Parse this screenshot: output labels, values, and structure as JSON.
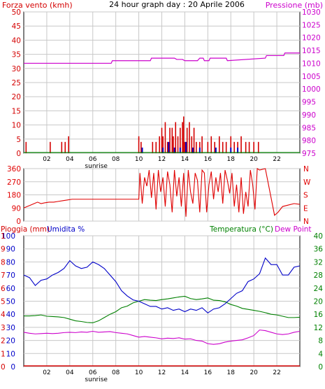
{
  "header": {
    "title": "24 hour graph day : 20 Aprile 2006",
    "left_label": "Forza vento (kmh)",
    "right_label": "Pressione (mb)"
  },
  "colors": {
    "wind": "#d40000",
    "gust": "#0000c8",
    "pressure": "#cc00cc",
    "direction": "#e00000",
    "humidity": "#0000c8",
    "temperature": "#008000",
    "dewpoint": "#cc00cc",
    "rain": "#d40000",
    "axis": "#000000",
    "grid": "#c8c8c8"
  },
  "chart_data": [
    {
      "type": "bar",
      "title": "24 hour graph day : 20 Aprile 2006",
      "ylabel": "Forza vento (kmh)",
      "y2label": "Pressione (mb)",
      "xlim": [
        0,
        24
      ],
      "ylim": [
        0,
        50
      ],
      "y2lim": [
        975,
        1030
      ],
      "x_ticks": [
        "02",
        "04",
        "06",
        "08",
        "10",
        "12",
        "14",
        "16",
        "18",
        "20",
        "22"
      ],
      "sunrise_label": "sunrise",
      "sunrise_hour": 6.3,
      "y_ticks": [
        0,
        5,
        10,
        15,
        20,
        25,
        30,
        35,
        40,
        45,
        50
      ],
      "y2_ticks": [
        975,
        980,
        985,
        990,
        995,
        1000,
        1005,
        1010,
        1015,
        1020,
        1025,
        1030
      ],
      "grid": true,
      "series": [
        {
          "name": "Forza vento",
          "kind": "bars",
          "x": [
            0.2,
            2.3,
            3.3,
            3.6,
            3.9,
            10.0,
            10.2,
            11.2,
            11.5,
            11.8,
            12.0,
            12.1,
            12.3,
            12.5,
            12.7,
            12.9,
            13.0,
            13.2,
            13.4,
            13.6,
            13.8,
            13.9,
            14.0,
            14.2,
            14.4,
            14.6,
            14.8,
            15.0,
            15.3,
            15.5,
            16.0,
            16.3,
            16.6,
            17.0,
            17.3,
            17.6,
            18.0,
            18.3,
            18.6,
            18.9,
            19.3,
            19.6,
            20.0,
            20.4
          ],
          "values": [
            4,
            4,
            4,
            4,
            6,
            6,
            4,
            4,
            4,
            6,
            9,
            6,
            11,
            4,
            9,
            9,
            6,
            11,
            6,
            9,
            11,
            13,
            4,
            9,
            11,
            6,
            9,
            4,
            4,
            6,
            4,
            6,
            4,
            6,
            4,
            4,
            6,
            4,
            4,
            6,
            4,
            4,
            4,
            4
          ]
        },
        {
          "name": "Raffica",
          "kind": "bars",
          "x": [
            10.3,
            12.1,
            12.6,
            13.1,
            13.6,
            14.1,
            14.7,
            15.3,
            16.7,
            18.0,
            18.6
          ],
          "values": [
            2,
            2,
            4,
            2,
            2,
            4,
            2,
            2,
            2,
            2,
            2
          ]
        },
        {
          "name": "Pressione",
          "kind": "line",
          "axis": "y2",
          "x": [
            0,
            7.6,
            7.7,
            11.0,
            11.1,
            13.1,
            13.3,
            13.8,
            14.0,
            15.1,
            15.3,
            15.6,
            15.7,
            16.1,
            16.2,
            17.6,
            17.7,
            21.0,
            21.1,
            22.6,
            22.7,
            24
          ],
          "values": [
            1010,
            1010,
            1011,
            1011,
            1012,
            1012,
            1011.5,
            1011.5,
            1011,
            1011,
            1012,
            1012,
            1011,
            1011,
            1012,
            1012,
            1011,
            1012,
            1013,
            1013,
            1014,
            1014
          ]
        }
      ]
    },
    {
      "type": "line",
      "ylabel_right": [
        "N",
        "W",
        "S",
        "E",
        "N"
      ],
      "xlim": [
        0,
        24
      ],
      "ylim": [
        0,
        360
      ],
      "y_ticks": [
        0,
        90,
        180,
        270,
        360
      ],
      "grid": true,
      "series": [
        {
          "name": "Direzione vento",
          "x": [
            0,
            0.3,
            0.6,
            0.9,
            1.2,
            1.5,
            1.8,
            2.2,
            2.6,
            3.0,
            3.4,
            3.8,
            4.2,
            10.0,
            10.1,
            10.3,
            10.5,
            10.7,
            10.9,
            11.1,
            11.3,
            11.5,
            11.7,
            11.9,
            12.1,
            12.3,
            12.5,
            12.7,
            12.9,
            13.1,
            13.3,
            13.5,
            13.7,
            13.9,
            14.1,
            14.3,
            14.5,
            14.7,
            14.9,
            15.1,
            15.3,
            15.5,
            15.7,
            15.9,
            16.1,
            16.3,
            16.5,
            16.7,
            16.9,
            17.1,
            17.3,
            17.5,
            17.7,
            17.9,
            18.1,
            18.3,
            18.5,
            18.7,
            18.9,
            19.1,
            19.3,
            19.5,
            19.7,
            19.9,
            20.1,
            20.3,
            20.5,
            21.0,
            21.8,
            22.1,
            22.5,
            23.0,
            23.5,
            24
          ],
          "values": [
            90,
            100,
            110,
            120,
            130,
            120,
            125,
            130,
            130,
            135,
            140,
            145,
            150,
            150,
            330,
            120,
            300,
            240,
            350,
            160,
            330,
            80,
            350,
            200,
            300,
            100,
            340,
            250,
            60,
            350,
            170,
            300,
            100,
            330,
            30,
            350,
            200,
            120,
            330,
            280,
            60,
            350,
            330,
            60,
            250,
            340,
            150,
            300,
            200,
            330,
            120,
            350,
            280,
            190,
            330,
            100,
            250,
            60,
            300,
            50,
            200,
            100,
            350,
            250,
            80,
            360,
            350,
            360,
            40,
            60,
            100,
            110,
            120,
            115
          ]
        }
      ]
    },
    {
      "type": "line",
      "title_left": "Pioggia (mm)",
      "title_left2": "Umidita %",
      "title_right": "Temperatura (°C)",
      "title_right2": "Dew Point",
      "xlim": [
        0,
        24
      ],
      "ylim": [
        0,
        100
      ],
      "y2lim": [
        0,
        40
      ],
      "y_ticks": [
        0,
        10,
        20,
        30,
        40,
        50,
        60,
        70,
        80,
        90,
        100
      ],
      "y_ticks_rain": [
        0,
        6,
        12,
        18,
        24,
        30,
        36,
        42,
        48,
        54,
        60,
        66,
        72,
        78,
        84,
        90,
        96,
        102
      ],
      "y_ticks_rain_display": [
        0,
        6,
        12,
        18,
        24,
        30,
        36,
        42,
        48,
        54,
        60,
        66,
        72,
        78,
        84,
        90,
        96,
        102
      ],
      "y2_ticks": [
        0,
        4,
        8,
        12,
        16,
        20,
        24,
        28,
        32,
        36,
        40
      ],
      "grid": true,
      "series": [
        {
          "name": "Umidita %",
          "axis": "y",
          "x": [
            0,
            0.5,
            1.0,
            1.5,
            2.0,
            2.5,
            3.0,
            3.5,
            4.0,
            4.5,
            5.0,
            5.5,
            6.0,
            6.5,
            7.0,
            7.5,
            8.0,
            8.5,
            9.0,
            9.5,
            10.0,
            10.5,
            11.0,
            11.5,
            12.0,
            12.5,
            13.0,
            13.5,
            14.0,
            14.5,
            15.0,
            15.5,
            16.0,
            16.5,
            17.0,
            17.5,
            18.0,
            18.5,
            19.0,
            19.5,
            20.0,
            20.5,
            21.0,
            21.5,
            22.0,
            22.5,
            23.0,
            23.5,
            24
          ],
          "values": [
            70,
            68,
            62,
            66,
            67,
            70,
            72,
            75,
            81,
            77,
            75,
            76,
            80,
            78,
            75,
            70,
            65,
            58,
            54,
            51,
            50,
            48,
            46,
            46,
            44,
            45,
            43,
            44,
            42,
            44,
            43,
            45,
            41,
            44,
            45,
            48,
            52,
            56,
            58,
            65,
            67,
            71,
            83,
            78,
            78,
            70,
            70,
            76,
            77
          ]
        },
        {
          "name": "Temperatura (°C)",
          "axis": "y2",
          "x": [
            0,
            0.5,
            1.0,
            1.5,
            2.0,
            2.5,
            3.0,
            3.5,
            4.0,
            4.5,
            5.0,
            5.5,
            6.0,
            6.5,
            7.0,
            7.5,
            8.0,
            8.5,
            9.0,
            9.5,
            10.0,
            10.5,
            11.0,
            11.5,
            12.0,
            12.5,
            13.0,
            13.5,
            14.0,
            14.5,
            15.0,
            15.5,
            16.0,
            16.5,
            17.0,
            17.5,
            18.0,
            18.5,
            19.0,
            19.5,
            20.0,
            20.5,
            21.0,
            21.5,
            22.0,
            22.5,
            23.0,
            23.5,
            24
          ],
          "values": [
            15.5,
            15.5,
            15.6,
            15.8,
            15.4,
            15.3,
            15.2,
            15.0,
            14.5,
            14.0,
            13.8,
            13.5,
            13.4,
            14.0,
            15.0,
            16.0,
            16.8,
            18.0,
            18.5,
            19.5,
            20.0,
            20.5,
            20.3,
            20.2,
            20.5,
            20.7,
            21.0,
            21.3,
            21.5,
            20.8,
            20.5,
            20.7,
            21.0,
            20.3,
            20.2,
            19.8,
            19.0,
            18.5,
            17.8,
            17.5,
            17.2,
            16.9,
            16.5,
            16.0,
            15.8,
            15.4,
            15.0,
            15.0,
            15.1
          ]
        },
        {
          "name": "Dew Point",
          "axis": "y2",
          "x": [
            0,
            0.5,
            1.0,
            1.5,
            2.0,
            2.5,
            3.0,
            3.5,
            4.0,
            4.5,
            5.0,
            5.5,
            6.0,
            6.5,
            7.0,
            7.5,
            8.0,
            8.5,
            9.0,
            9.5,
            10.0,
            10.5,
            11.0,
            11.5,
            12.0,
            12.5,
            13.0,
            13.5,
            14.0,
            14.5,
            15.0,
            15.5,
            16.0,
            16.5,
            17.0,
            17.5,
            18.0,
            18.5,
            19.0,
            19.5,
            20.0,
            20.5,
            21.0,
            21.5,
            22.0,
            22.5,
            23.0,
            23.5,
            24
          ],
          "values": [
            10.5,
            10.2,
            10.0,
            10.1,
            10.2,
            10.1,
            10.2,
            10.4,
            10.5,
            10.4,
            10.6,
            10.5,
            10.8,
            10.5,
            10.6,
            10.7,
            10.4,
            10.2,
            10.0,
            9.5,
            9.0,
            9.2,
            9.0,
            8.8,
            8.5,
            8.7,
            8.6,
            8.8,
            8.4,
            8.5,
            8.0,
            7.8,
            7.0,
            6.8,
            7.0,
            7.5,
            7.8,
            8.0,
            8.2,
            8.8,
            9.5,
            11.2,
            11.0,
            10.5,
            10.0,
            9.8,
            10.0,
            10.5,
            10.8
          ]
        },
        {
          "name": "Pioggia (mm)",
          "axis": "y",
          "x": [
            0,
            24
          ],
          "values": [
            0,
            0
          ]
        }
      ]
    }
  ]
}
